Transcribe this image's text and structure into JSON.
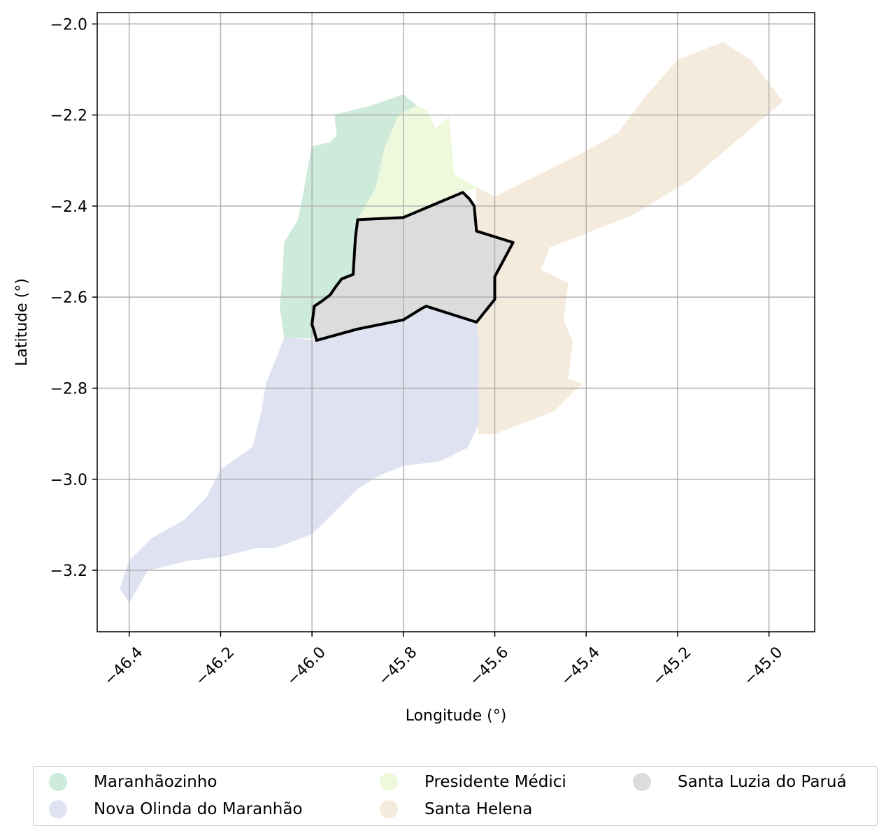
{
  "map": {
    "xlabel": "Longitude (°)",
    "ylabel": "Latitude (°)",
    "xlim": [
      -46.47,
      -44.9
    ],
    "ylim": [
      -3.335,
      -1.975
    ],
    "x_ticks": [
      "−46.4",
      "−46.2",
      "−46.0",
      "−45.8",
      "−45.6",
      "−45.4",
      "−45.2",
      "−45.0"
    ],
    "y_ticks": [
      "−2.0",
      "−2.2",
      "−2.4",
      "−2.6",
      "−2.8",
      "−3.0",
      "−3.2"
    ],
    "grid": true,
    "highlight_region": "Santa Luzia do Paruá",
    "regions": [
      {
        "name": "Maranhãozinho",
        "color": "#cdeadb",
        "coords": [
          [
            -45.95,
            -2.2
          ],
          [
            -45.87,
            -2.18
          ],
          [
            -45.8,
            -2.155
          ],
          [
            -45.76,
            -2.19
          ],
          [
            -45.81,
            -2.2
          ],
          [
            -45.84,
            -2.27
          ],
          [
            -45.86,
            -2.36
          ],
          [
            -45.9,
            -2.43
          ],
          [
            -45.91,
            -2.55
          ],
          [
            -45.95,
            -2.59
          ],
          [
            -45.98,
            -2.61
          ],
          [
            -45.99,
            -2.66
          ],
          [
            -46.0,
            -2.69
          ],
          [
            -46.06,
            -2.69
          ],
          [
            -46.07,
            -2.62
          ],
          [
            -46.065,
            -2.57
          ],
          [
            -46.06,
            -2.48
          ],
          [
            -46.03,
            -2.43
          ],
          [
            -46.02,
            -2.38
          ],
          [
            -46.0,
            -2.27
          ],
          [
            -45.96,
            -2.26
          ],
          [
            -45.945,
            -2.245
          ]
        ]
      },
      {
        "name": "Presidente Médici",
        "color": "#eef8dc",
        "coords": [
          [
            -45.81,
            -2.2
          ],
          [
            -45.77,
            -2.18
          ],
          [
            -45.75,
            -2.19
          ],
          [
            -45.73,
            -2.23
          ],
          [
            -45.7,
            -2.205
          ],
          [
            -45.69,
            -2.33
          ],
          [
            -45.64,
            -2.36
          ],
          [
            -45.67,
            -2.37
          ],
          [
            -45.8,
            -2.425
          ],
          [
            -45.9,
            -2.43
          ],
          [
            -45.86,
            -2.36
          ],
          [
            -45.84,
            -2.27
          ]
        ]
      },
      {
        "name": "Santa Helena",
        "color": "#f5ebdc",
        "coords": [
          [
            -45.64,
            -2.36
          ],
          [
            -45.6,
            -2.38
          ],
          [
            -45.5,
            -2.33
          ],
          [
            -45.4,
            -2.28
          ],
          [
            -45.33,
            -2.24
          ],
          [
            -45.27,
            -2.16
          ],
          [
            -45.2,
            -2.08
          ],
          [
            -45.1,
            -2.04
          ],
          [
            -45.04,
            -2.08
          ],
          [
            -44.97,
            -2.17
          ],
          [
            -45.17,
            -2.34
          ],
          [
            -45.3,
            -2.42
          ],
          [
            -45.48,
            -2.49
          ],
          [
            -45.5,
            -2.54
          ],
          [
            -45.44,
            -2.57
          ],
          [
            -45.45,
            -2.65
          ],
          [
            -45.43,
            -2.7
          ],
          [
            -45.44,
            -2.78
          ],
          [
            -45.41,
            -2.79
          ],
          [
            -45.47,
            -2.85
          ],
          [
            -45.55,
            -2.88
          ],
          [
            -45.6,
            -2.9
          ],
          [
            -45.636,
            -2.9
          ],
          [
            -45.636,
            -2.69
          ],
          [
            -45.64,
            -2.655
          ],
          [
            -45.6,
            -2.605
          ],
          [
            -45.6,
            -2.555
          ],
          [
            -45.56,
            -2.48
          ],
          [
            -45.64,
            -2.455
          ],
          [
            -45.64,
            -2.4
          ]
        ]
      },
      {
        "name": "Nova Olinda do Maranhão",
        "color": "#dfe3f1",
        "coords": [
          [
            -46.06,
            -2.69
          ],
          [
            -45.99,
            -2.695
          ],
          [
            -45.9,
            -2.67
          ],
          [
            -45.8,
            -2.65
          ],
          [
            -45.75,
            -2.62
          ],
          [
            -45.64,
            -2.655
          ],
          [
            -45.636,
            -2.69
          ],
          [
            -45.636,
            -2.88
          ],
          [
            -45.66,
            -2.93
          ],
          [
            -45.72,
            -2.96
          ],
          [
            -45.8,
            -2.97
          ],
          [
            -45.85,
            -2.99
          ],
          [
            -45.9,
            -3.02
          ],
          [
            -45.95,
            -3.07
          ],
          [
            -46.0,
            -3.12
          ],
          [
            -46.08,
            -3.15
          ],
          [
            -46.12,
            -3.15
          ],
          [
            -46.16,
            -3.16
          ],
          [
            -46.2,
            -3.17
          ],
          [
            -46.28,
            -3.18
          ],
          [
            -46.36,
            -3.2
          ],
          [
            -46.4,
            -3.27
          ],
          [
            -46.42,
            -3.24
          ],
          [
            -46.4,
            -3.18
          ],
          [
            -46.35,
            -3.13
          ],
          [
            -46.28,
            -3.09
          ],
          [
            -46.23,
            -3.04
          ],
          [
            -46.2,
            -2.98
          ],
          [
            -46.13,
            -2.93
          ],
          [
            -46.11,
            -2.85
          ],
          [
            -46.1,
            -2.79
          ],
          [
            -46.08,
            -2.74
          ]
        ]
      },
      {
        "name": "Santa Luzia do Paruá",
        "color": "#dcdcdc",
        "coords": [
          [
            -45.9,
            -2.43
          ],
          [
            -45.8,
            -2.425
          ],
          [
            -45.67,
            -2.37
          ],
          [
            -45.655,
            -2.385
          ],
          [
            -45.645,
            -2.4
          ],
          [
            -45.64,
            -2.455
          ],
          [
            -45.56,
            -2.48
          ],
          [
            -45.6,
            -2.555
          ],
          [
            -45.6,
            -2.605
          ],
          [
            -45.64,
            -2.655
          ],
          [
            -45.75,
            -2.62
          ],
          [
            -45.76,
            -2.625
          ],
          [
            -45.8,
            -2.65
          ],
          [
            -45.9,
            -2.67
          ],
          [
            -45.99,
            -2.695
          ],
          [
            -45.995,
            -2.675
          ],
          [
            -46.0,
            -2.66
          ],
          [
            -45.995,
            -2.62
          ],
          [
            -45.98,
            -2.61
          ],
          [
            -45.96,
            -2.595
          ],
          [
            -45.95,
            -2.58
          ],
          [
            -45.935,
            -2.56
          ],
          [
            -45.91,
            -2.55
          ],
          [
            -45.905,
            -2.47
          ]
        ]
      }
    ]
  },
  "legend": {
    "entries": [
      {
        "label": "Maranhãozinho",
        "color": "#cdeadb"
      },
      {
        "label": "Nova Olinda do Maranhão",
        "color": "#dfe3f1"
      },
      {
        "label": "Presidente Médici",
        "color": "#eef8dc"
      },
      {
        "label": "Santa Helena",
        "color": "#f5ebdc"
      },
      {
        "label": "Santa Luzia do Paruá",
        "color": "#dcdcdc"
      }
    ]
  }
}
